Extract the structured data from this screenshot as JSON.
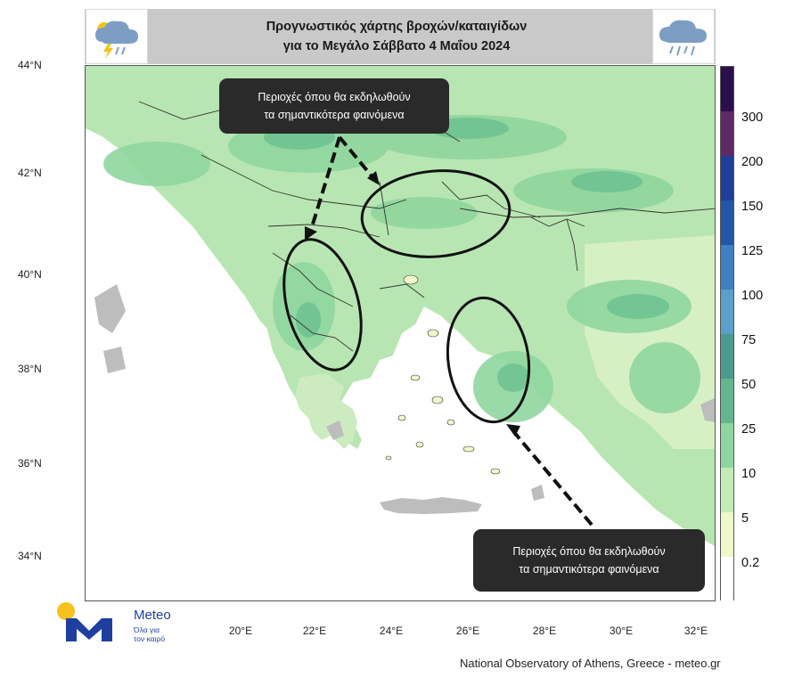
{
  "title": {
    "line1": "Προγνωστικός χάρτης βροχών/καταιγίδων",
    "line2": "για το Μεγάλο Σάββατο 4 Μαΐου 2024"
  },
  "icons": {
    "left": "storm-cloud-icon",
    "right": "rain-cloud-icon"
  },
  "axes": {
    "lat_labels": [
      "44°N",
      "42°N",
      "40°N",
      "38°N",
      "36°N",
      "34°N"
    ],
    "lon_labels": [
      "20°E",
      "22°E",
      "24°E",
      "26°E",
      "28°E",
      "30°E",
      "32°E"
    ]
  },
  "legend": {
    "labels": [
      "300",
      "200",
      "150",
      "125",
      "100",
      "75",
      "50",
      "25",
      "10",
      "5",
      "0.2"
    ],
    "colors": [
      "#2a0f4a",
      "#5e2a66",
      "#1f3d9a",
      "#2456a8",
      "#3f7fc4",
      "#5aa0c8",
      "#4a9b8c",
      "#64b68e",
      "#8fd69e",
      "#c3ebb8",
      "#eef8c8",
      "#ffffff"
    ]
  },
  "map_colors": {
    "sea": "#ffffff",
    "land_dry": "#eef8c8",
    "light_green": "#b8e6b2",
    "mid_green": "#8fd69e",
    "dark_green": "#6cc291",
    "grey_land": "#bdbdbd",
    "border": "#333333"
  },
  "callouts": {
    "top": {
      "line1": "Περιοχές όπου θα εκδηλωθούν",
      "line2": "τα σημαντικότερα φαινόμενα"
    },
    "bottom": {
      "line1": "Περιοχές όπου θα εκδηλωθούν",
      "line2": "τα σημαντικότερα φαινόμενα"
    }
  },
  "logo": {
    "name": "Meteo",
    "tagline_1": "Όλα για",
    "tagline_2": "τον καιρό",
    "colors": {
      "sun": "#f6c21b",
      "mark": "#1f3fa0"
    }
  },
  "credit": "National Observatory of Athens, Greece - meteo.gr"
}
